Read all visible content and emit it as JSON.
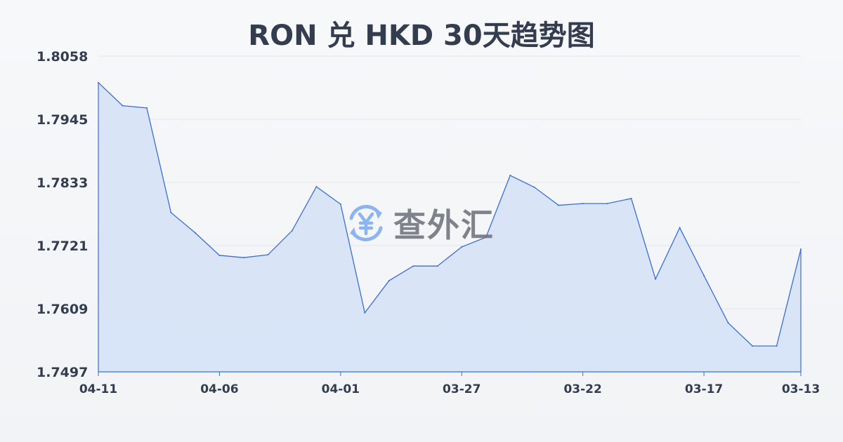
{
  "title": "RON 兑 HKD 30天趋势图",
  "watermark": {
    "text": "查外汇",
    "icon": "yen-exchange-icon",
    "icon_color": "#7aa9f0"
  },
  "chart_data": {
    "type": "area",
    "title": "RON 兑 HKD 30天趋势图",
    "xlabel": "",
    "ylabel": "",
    "x_tick_labels": [
      "04-11",
      "04-06",
      "04-01",
      "03-27",
      "03-22",
      "03-17",
      "03-13"
    ],
    "y_tick_labels": [
      "1.8058",
      "1.7945",
      "1.7833",
      "1.7721",
      "1.7609",
      "1.7497"
    ],
    "ylim": [
      1.7497,
      1.8058
    ],
    "grid": true,
    "line_color": "#3a6fd8",
    "fill_color": "#d4e1f7",
    "x": [
      "04-11",
      "04-10",
      "04-09",
      "04-08",
      "04-07",
      "04-06",
      "04-05",
      "04-04",
      "04-03",
      "04-02",
      "04-01",
      "03-31",
      "03-30",
      "03-29",
      "03-28",
      "03-27",
      "03-26",
      "03-25",
      "03-24",
      "03-23",
      "03-22",
      "03-21",
      "03-20",
      "03-19",
      "03-18",
      "03-17",
      "03-16",
      "03-15",
      "03-14",
      "03-13"
    ],
    "values": [
      1.8011,
      1.797,
      1.7966,
      1.778,
      1.7744,
      1.7704,
      1.77,
      1.7705,
      1.7748,
      1.7826,
      1.7795,
      1.7602,
      1.7659,
      1.7685,
      1.7685,
      1.7719,
      1.7736,
      1.7846,
      1.7825,
      1.7793,
      1.7796,
      1.7796,
      1.7805,
      1.7662,
      1.7753,
      1.7668,
      1.7584,
      1.7543,
      1.7543,
      1.7715
    ]
  }
}
